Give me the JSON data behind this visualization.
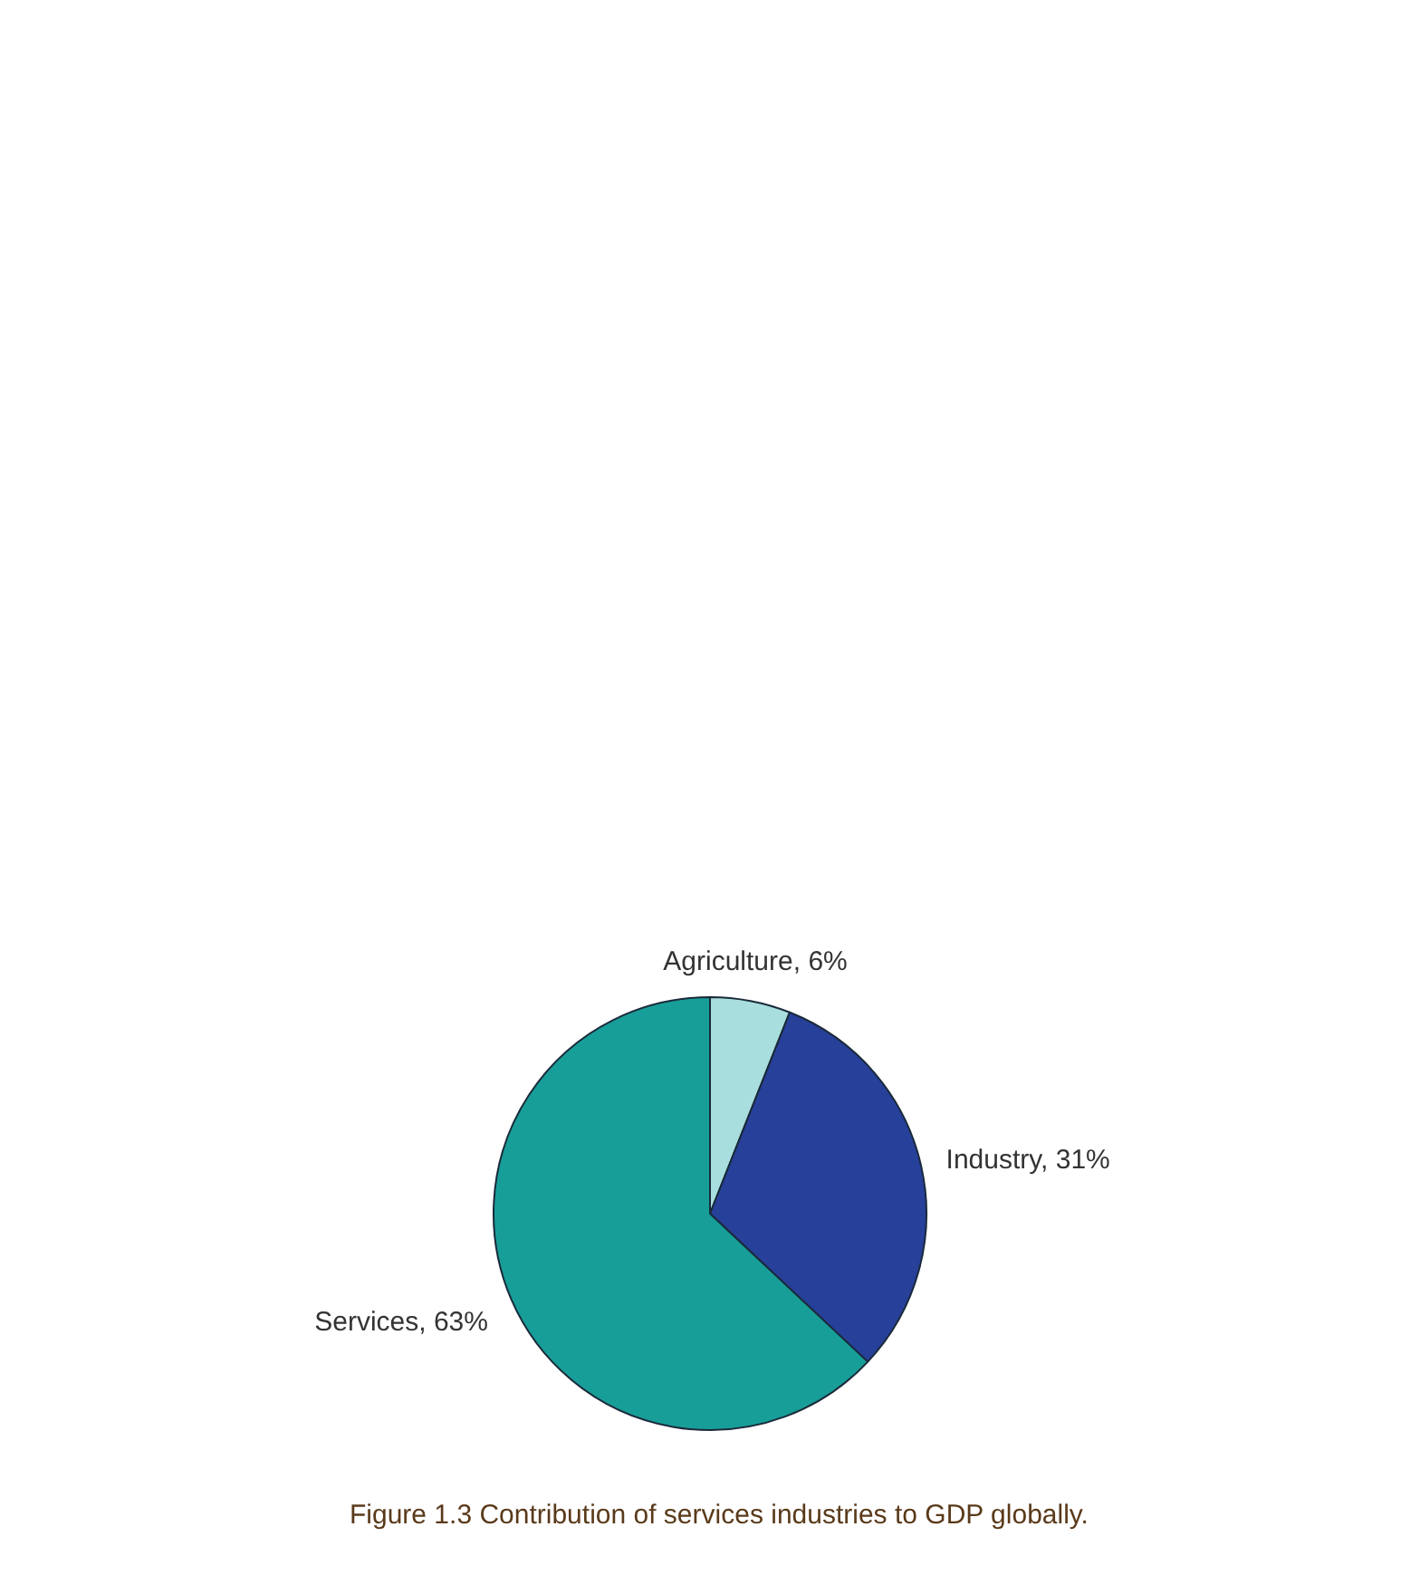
{
  "chart_data": {
    "type": "pie",
    "title": "Figure 1.3 Contribution of services industries to GDP globally.",
    "categories": [
      "Agriculture",
      "Industry",
      "Services"
    ],
    "values": [
      6,
      31,
      63
    ],
    "colors": [
      "#a8dede",
      "#27409a",
      "#189e98"
    ],
    "value_labels": [
      "6%",
      "31%",
      "63%"
    ]
  }
}
